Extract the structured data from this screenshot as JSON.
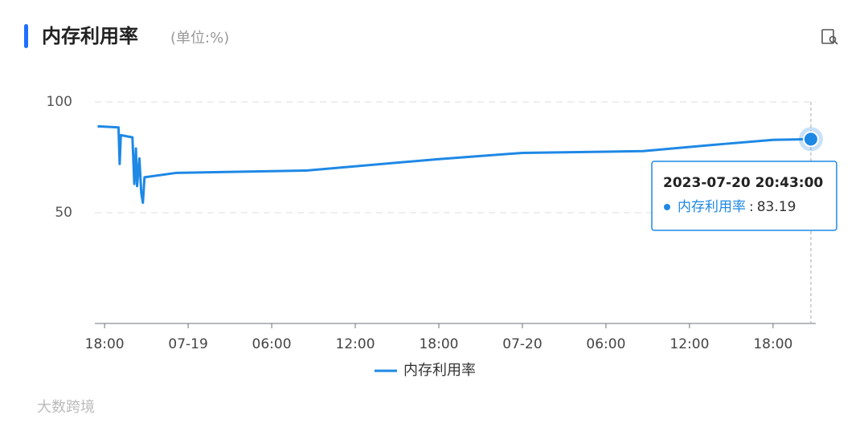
{
  "chart_data": {
    "type": "line",
    "title": "内存利用率",
    "subtitle": "(单位:%)",
    "x": [
      "2023-07-18 17:30:00",
      "2023-07-18 19:00:00",
      "2023-07-18 19:05:00",
      "2023-07-18 19:10:00",
      "2023-07-18 20:00:00",
      "2023-07-18 20:08:00",
      "2023-07-18 20:15:00",
      "2023-07-18 20:20:00",
      "2023-07-18 20:30:00",
      "2023-07-18 20:38:00",
      "2023-07-18 20:45:00",
      "2023-07-18 20:52:00",
      "2023-07-18 23:10:00",
      "2023-07-19 08:25:00",
      "2023-07-19 18:00:00",
      "2023-07-20 00:00:00",
      "2023-07-20 08:40:00",
      "2023-07-20 14:25:00",
      "2023-07-20 18:00:00",
      "2023-07-20 20:43:00"
    ],
    "series": [
      {
        "name": "内存利用率",
        "color": "#1e88e5",
        "values": [
          89,
          88.5,
          72,
          85,
          84,
          63,
          79,
          62,
          74.5,
          59,
          54.5,
          66,
          68,
          69,
          74.2,
          77,
          77.8,
          81,
          82.9,
          83.19
        ]
      }
    ],
    "xlim": [
      "2023-07-18 17:18:00",
      "2023-07-20 21:04:00"
    ],
    "xticks": [
      {
        "value": "2023-07-18 18:00:00",
        "label": "18:00"
      },
      {
        "value": "2023-07-19 00:00:00",
        "label": "07-19"
      },
      {
        "value": "2023-07-19 06:00:00",
        "label": "06:00"
      },
      {
        "value": "2023-07-19 12:00:00",
        "label": "12:00"
      },
      {
        "value": "2023-07-19 18:00:00",
        "label": "18:00"
      },
      {
        "value": "2023-07-20 00:00:00",
        "label": "07-20"
      },
      {
        "value": "2023-07-20 06:00:00",
        "label": "06:00"
      },
      {
        "value": "2023-07-20 12:00:00",
        "label": "12:00"
      },
      {
        "value": "2023-07-20 18:00:00",
        "label": "18:00"
      }
    ],
    "ylim": [
      0,
      100
    ],
    "yticks": [
      50,
      100
    ],
    "grid": true,
    "watermark": "大数跨境"
  }
}
